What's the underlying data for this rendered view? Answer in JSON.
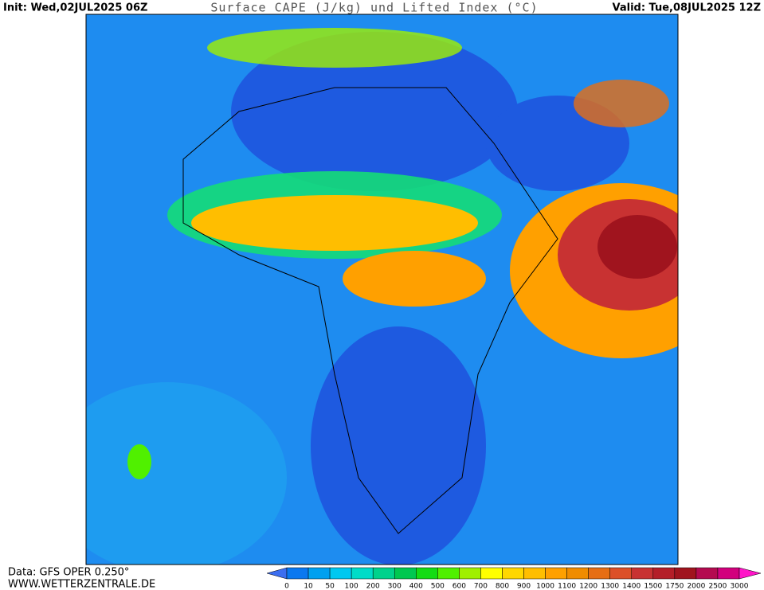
{
  "header": {
    "init": "Init: Wed,02JUL2025 06Z",
    "title": "Surface CAPE (J/kg) und Lifted Index (°C)",
    "valid": "Valid: Tue,08JUL2025 12Z"
  },
  "footer": {
    "source": "Data: GFS OPER 0.250°",
    "website": "WWW.WETTERZENTRALE.DE"
  },
  "colorbar": {
    "labels": [
      "0",
      "10",
      "50",
      "100",
      "200",
      "300",
      "400",
      "500",
      "600",
      "700",
      "800",
      "900",
      "1000",
      "1100",
      "1200",
      "1300",
      "1400",
      "1500",
      "1750",
      "2000",
      "2500",
      "3000"
    ],
    "colors": [
      "#3c6ef0",
      "#0a78f0",
      "#00a0f0",
      "#00c8f0",
      "#00dcc8",
      "#00d28c",
      "#00c850",
      "#14dc14",
      "#50f000",
      "#a0f000",
      "#ffff00",
      "#ffd700",
      "#ffbe00",
      "#ffa000",
      "#f08c00",
      "#e66e14",
      "#dc5028",
      "#c83232",
      "#b41e28",
      "#a0141e",
      "#b40a50",
      "#d2007d",
      "#ff14c8"
    ]
  }
}
